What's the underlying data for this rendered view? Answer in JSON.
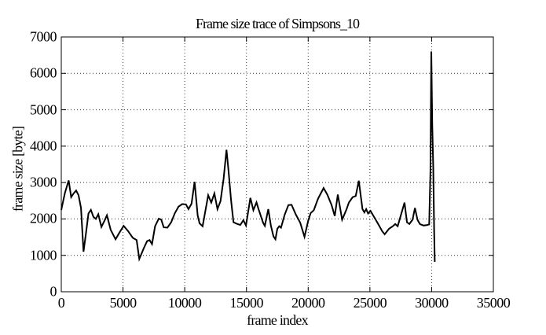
{
  "chart_data": {
    "type": "line",
    "title": "Frame size trace of Simpsons_10",
    "xlabel": "frame index",
    "ylabel": "frame size [byte]",
    "xlim": [
      0,
      35000
    ],
    "ylim": [
      0,
      7000
    ],
    "xticks": [
      "0",
      "5000",
      "10000",
      "15000",
      "20000",
      "25000",
      "30000",
      "35000"
    ],
    "yticks": [
      "0",
      "1000",
      "2000",
      "3000",
      "4000",
      "5000",
      "6000",
      "7000"
    ],
    "grid": true,
    "grid_style": "dotted",
    "legend_position": "none",
    "line_color": "#000000",
    "background_color": "#ffffff",
    "series": [
      {
        "name": "frame size trace",
        "x": [
          0,
          300,
          600,
          800,
          1000,
          1200,
          1400,
          1600,
          1800,
          2000,
          2200,
          2400,
          2600,
          2800,
          3000,
          3250,
          3500,
          3700,
          4000,
          4400,
          4700,
          5050,
          5400,
          5800,
          6100,
          6320,
          6700,
          6950,
          7150,
          7350,
          7600,
          7900,
          8100,
          8300,
          8600,
          8900,
          9200,
          9500,
          9800,
          10100,
          10300,
          10550,
          10800,
          11050,
          11200,
          11450,
          11900,
          12150,
          12400,
          12650,
          12900,
          13150,
          13380,
          13550,
          13750,
          13950,
          14200,
          14500,
          14750,
          14960,
          15320,
          15560,
          15815,
          15980,
          16345,
          16490,
          16770,
          16980,
          17190,
          17350,
          17500,
          17650,
          17800,
          18100,
          18400,
          18650,
          19000,
          19350,
          19700,
          20000,
          20200,
          20450,
          20800,
          21250,
          21550,
          21900,
          22150,
          22400,
          22750,
          23100,
          23300,
          23600,
          23850,
          24100,
          24400,
          24550,
          24700,
          24850,
          25050,
          25400,
          25700,
          26000,
          26200,
          26550,
          26850,
          27050,
          27250,
          27800,
          28000,
          28200,
          28450,
          28650,
          28850,
          29050,
          29350,
          29600,
          29800,
          29900,
          29970,
          30050,
          30130,
          30200,
          30250
        ],
        "y": [
          2250,
          2720,
          3060,
          2600,
          2700,
          2780,
          2650,
          2300,
          1100,
          1600,
          2150,
          2250,
          2060,
          2000,
          2130,
          1780,
          1950,
          2100,
          1700,
          1440,
          1620,
          1810,
          1670,
          1480,
          1420,
          900,
          1210,
          1390,
          1420,
          1310,
          1800,
          2010,
          1980,
          1770,
          1760,
          1910,
          2160,
          2340,
          2410,
          2400,
          2270,
          2420,
          3020,
          2100,
          1880,
          1800,
          2650,
          2450,
          2700,
          2270,
          2490,
          3100,
          3900,
          3320,
          2520,
          1910,
          1870,
          1835,
          1965,
          1820,
          2580,
          2240,
          2455,
          2270,
          1895,
          1810,
          2270,
          1820,
          1520,
          1440,
          1730,
          1800,
          1760,
          2120,
          2380,
          2390,
          2120,
          1900,
          1510,
          1950,
          2160,
          2240,
          2560,
          2850,
          2670,
          2380,
          2080,
          2670,
          1980,
          2260,
          2450,
          2600,
          2630,
          3050,
          2270,
          2180,
          2270,
          2150,
          2220,
          2020,
          1840,
          1660,
          1580,
          1730,
          1800,
          1860,
          1800,
          2450,
          1910,
          1860,
          1980,
          2300,
          1980,
          1860,
          1820,
          1830,
          1850,
          3300,
          6600,
          4600,
          3400,
          1700,
          820
        ]
      }
    ]
  }
}
